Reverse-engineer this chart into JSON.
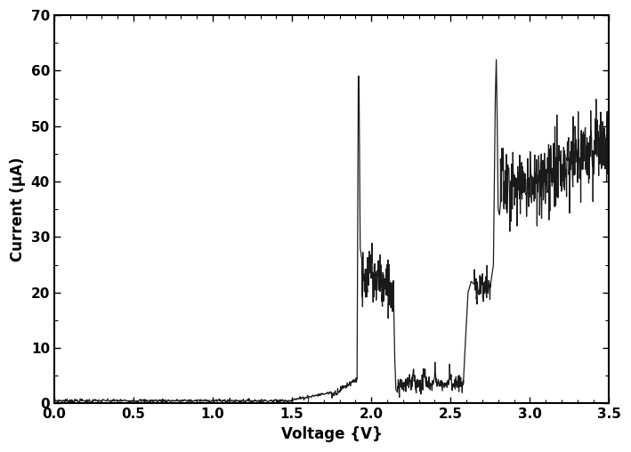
{
  "title": "",
  "xlabel": "Voltage {V}",
  "ylabel": "Current (μA)",
  "xlim": [
    0.0,
    3.5
  ],
  "ylim": [
    0,
    70
  ],
  "xticks": [
    0.0,
    0.5,
    1.0,
    1.5,
    2.0,
    2.5,
    3.0,
    3.5
  ],
  "yticks": [
    0,
    10,
    20,
    30,
    40,
    50,
    60,
    70
  ],
  "line_color": "#1a1a1a",
  "line_width": 0.9,
  "background_color": "#ffffff",
  "figsize": [
    7.09,
    5.08
  ],
  "dpi": 100
}
